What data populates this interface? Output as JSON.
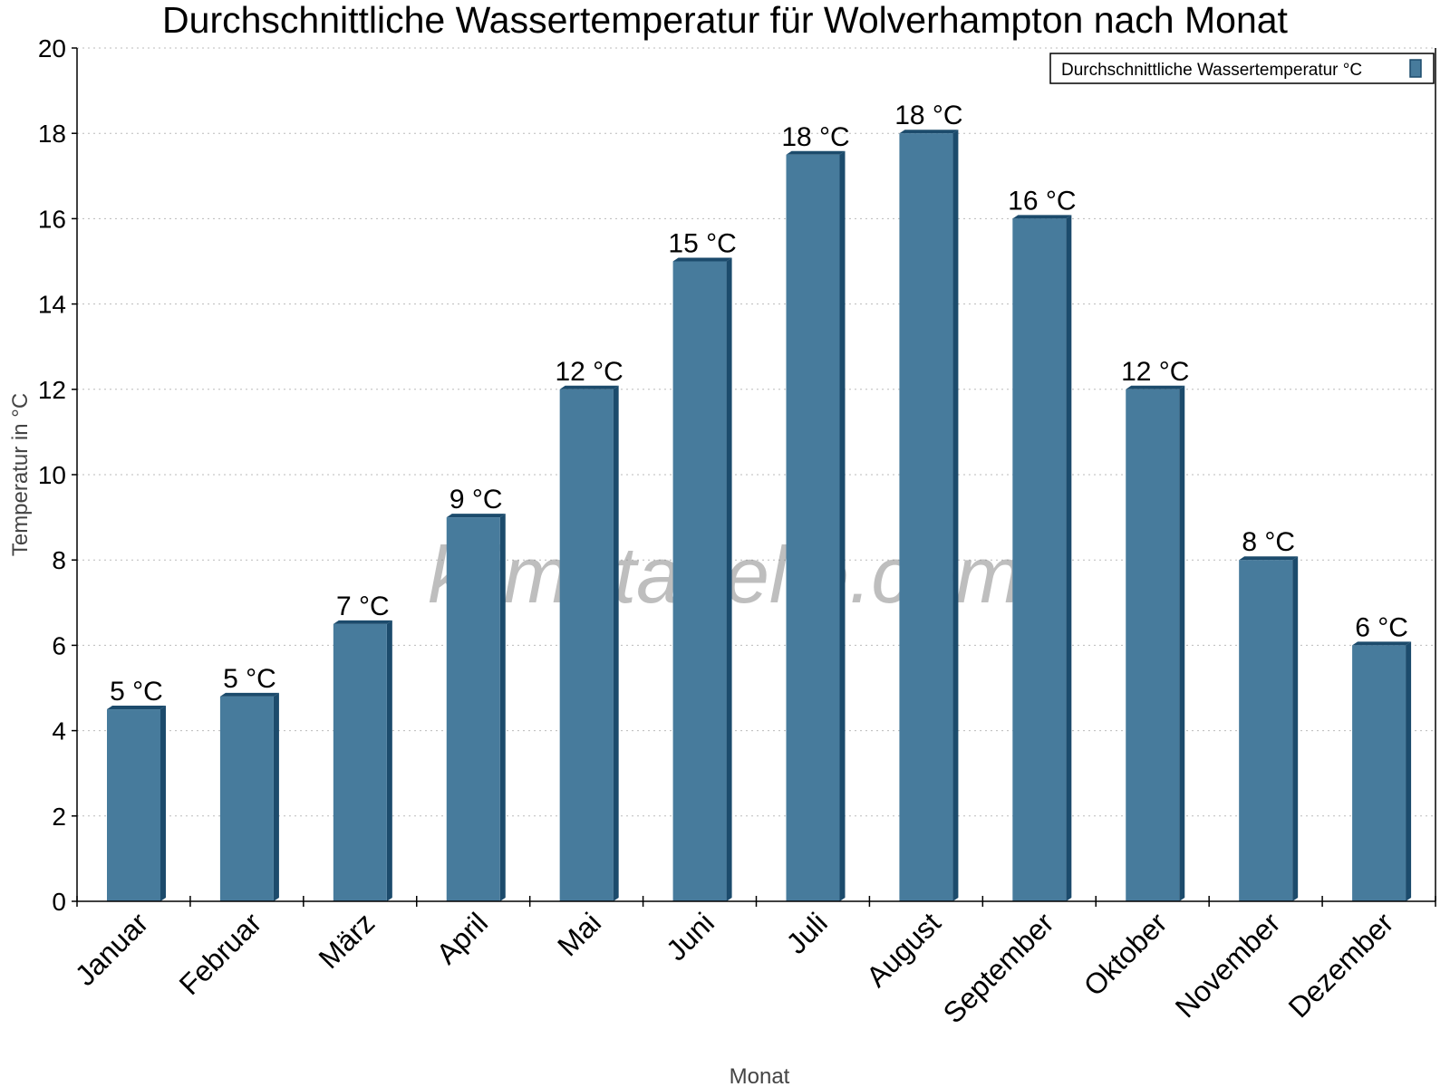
{
  "chart_data": {
    "type": "bar",
    "title": "Durchschnittliche Wassertemperatur für Wolverhampton nach Monat",
    "xlabel": "Monat",
    "ylabel": "Temperatur in °C",
    "ylim": [
      0,
      20
    ],
    "yticks": [
      0,
      2,
      4,
      6,
      8,
      10,
      12,
      14,
      16,
      18,
      20
    ],
    "grid": true,
    "legend_position": "top-right",
    "watermark": "klimatabelle.com",
    "categories": [
      "Januar",
      "Februar",
      "März",
      "April",
      "Mai",
      "Juni",
      "Juli",
      "August",
      "September",
      "Oktober",
      "November",
      "Dezember"
    ],
    "series": [
      {
        "name": "Durchschnittliche Wassertemperatur °C",
        "color": "#477b9c",
        "side_color": "#1c4b6c",
        "values": [
          4.5,
          4.8,
          6.5,
          9.0,
          12.0,
          15.0,
          17.5,
          18.0,
          16.0,
          12.0,
          8.0,
          6.0
        ],
        "labels": [
          "5 °C",
          "5 °C",
          "7 °C",
          "9 °C",
          "12 °C",
          "15 °C",
          "18 °C",
          "18 °C",
          "16 °C",
          "12 °C",
          "8 °C",
          "6 °C"
        ]
      }
    ]
  }
}
